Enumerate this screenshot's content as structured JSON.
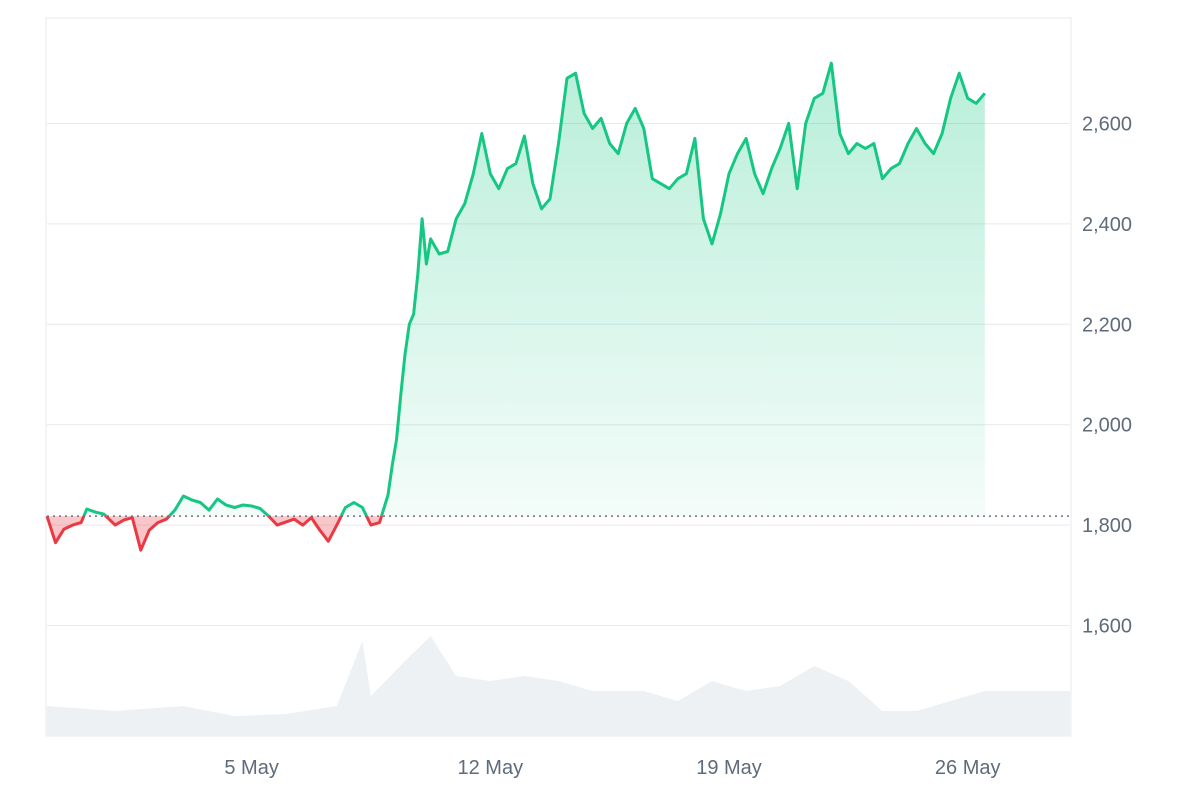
{
  "chart_data": {
    "type": "line",
    "title": "",
    "xlabel": "",
    "ylabel": "",
    "x_range": [
      "2025-04-29",
      "2025-05-29"
    ],
    "xticks": [
      {
        "date": "2025-05-05",
        "label": "5 May"
      },
      {
        "date": "2025-05-12",
        "label": "12 May"
      },
      {
        "date": "2025-05-19",
        "label": "19 May"
      },
      {
        "date": "2025-05-26",
        "label": "26 May"
      }
    ],
    "ylim": [
      1380,
      2810
    ],
    "yticks": [
      1600,
      1800,
      2000,
      2200,
      2400,
      2600
    ],
    "ytick_labels": [
      "1,600",
      "1,800",
      "2,000",
      "2,200",
      "2,400",
      "2,600"
    ],
    "grid": "horizontal",
    "y_axis_position": "right",
    "baseline": 1818,
    "colors": {
      "above_baseline": "#16c784",
      "below_baseline": "#ea3943",
      "volume": "#eef1f4",
      "grid": "#e6e9ee",
      "axis_text": "#5f6b7a"
    },
    "series": [
      {
        "points": [
          [
            "2025-04-29T00:00",
            1818
          ],
          [
            "2025-04-29T06:00",
            1765
          ],
          [
            "2025-04-29T12:00",
            1792
          ],
          [
            "2025-04-29T18:00",
            1800
          ],
          [
            "2025-04-30T00:00",
            1805
          ],
          [
            "2025-04-30T04:00",
            1832
          ],
          [
            "2025-04-30T10:00",
            1826
          ],
          [
            "2025-04-30T16:00",
            1822
          ],
          [
            "2025-05-01T00:00",
            1800
          ],
          [
            "2025-05-01T06:00",
            1810
          ],
          [
            "2025-05-01T12:00",
            1815
          ],
          [
            "2025-05-01T18:00",
            1750
          ],
          [
            "2025-05-02T00:00",
            1790
          ],
          [
            "2025-05-02T06:00",
            1805
          ],
          [
            "2025-05-02T12:00",
            1812
          ],
          [
            "2025-05-02T18:00",
            1830
          ],
          [
            "2025-05-03T00:00",
            1858
          ],
          [
            "2025-05-03T06:00",
            1850
          ],
          [
            "2025-05-03T12:00",
            1845
          ],
          [
            "2025-05-03T18:00",
            1830
          ],
          [
            "2025-05-04T00:00",
            1852
          ],
          [
            "2025-05-04T06:00",
            1840
          ],
          [
            "2025-05-04T12:00",
            1835
          ],
          [
            "2025-05-04T18:00",
            1840
          ],
          [
            "2025-05-05T00:00",
            1838
          ],
          [
            "2025-05-05T06:00",
            1833
          ],
          [
            "2025-05-05T12:00",
            1818
          ],
          [
            "2025-05-05T18:00",
            1800
          ],
          [
            "2025-05-06T00:00",
            1806
          ],
          [
            "2025-05-06T06:00",
            1812
          ],
          [
            "2025-05-06T12:00",
            1800
          ],
          [
            "2025-05-06T18:00",
            1815
          ],
          [
            "2025-05-07T00:00",
            1790
          ],
          [
            "2025-05-07T06:00",
            1768
          ],
          [
            "2025-05-07T12:00",
            1800
          ],
          [
            "2025-05-07T18:00",
            1835
          ],
          [
            "2025-05-08T00:00",
            1845
          ],
          [
            "2025-05-08T06:00",
            1835
          ],
          [
            "2025-05-08T12:00",
            1800
          ],
          [
            "2025-05-08T18:00",
            1805
          ],
          [
            "2025-05-09T00:00",
            1860
          ],
          [
            "2025-05-09T03:00",
            1920
          ],
          [
            "2025-05-09T06:00",
            1970
          ],
          [
            "2025-05-09T09:00",
            2060
          ],
          [
            "2025-05-09T12:00",
            2140
          ],
          [
            "2025-05-09T15:00",
            2200
          ],
          [
            "2025-05-09T18:00",
            2220
          ],
          [
            "2025-05-09T21:00",
            2300
          ],
          [
            "2025-05-10T00:00",
            2410
          ],
          [
            "2025-05-10T03:00",
            2320
          ],
          [
            "2025-05-10T06:00",
            2370
          ],
          [
            "2025-05-10T12:00",
            2340
          ],
          [
            "2025-05-10T18:00",
            2345
          ],
          [
            "2025-05-11T00:00",
            2410
          ],
          [
            "2025-05-11T06:00",
            2440
          ],
          [
            "2025-05-11T12:00",
            2500
          ],
          [
            "2025-05-11T18:00",
            2580
          ],
          [
            "2025-05-12T00:00",
            2500
          ],
          [
            "2025-05-12T06:00",
            2470
          ],
          [
            "2025-05-12T12:00",
            2510
          ],
          [
            "2025-05-12T18:00",
            2520
          ],
          [
            "2025-05-13T00:00",
            2575
          ],
          [
            "2025-05-13T06:00",
            2480
          ],
          [
            "2025-05-13T12:00",
            2430
          ],
          [
            "2025-05-13T18:00",
            2450
          ],
          [
            "2025-05-14T00:00",
            2560
          ],
          [
            "2025-05-14T06:00",
            2690
          ],
          [
            "2025-05-14T12:00",
            2700
          ],
          [
            "2025-05-14T18:00",
            2620
          ],
          [
            "2025-05-15T00:00",
            2590
          ],
          [
            "2025-05-15T06:00",
            2610
          ],
          [
            "2025-05-15T12:00",
            2560
          ],
          [
            "2025-05-15T18:00",
            2540
          ],
          [
            "2025-05-16T00:00",
            2600
          ],
          [
            "2025-05-16T06:00",
            2630
          ],
          [
            "2025-05-16T12:00",
            2590
          ],
          [
            "2025-05-16T18:00",
            2490
          ],
          [
            "2025-05-17T00:00",
            2480
          ],
          [
            "2025-05-17T06:00",
            2470
          ],
          [
            "2025-05-17T12:00",
            2490
          ],
          [
            "2025-05-17T18:00",
            2500
          ],
          [
            "2025-05-18T00:00",
            2570
          ],
          [
            "2025-05-18T06:00",
            2410
          ],
          [
            "2025-05-18T12:00",
            2360
          ],
          [
            "2025-05-18T18:00",
            2420
          ],
          [
            "2025-05-19T00:00",
            2500
          ],
          [
            "2025-05-19T06:00",
            2540
          ],
          [
            "2025-05-19T12:00",
            2570
          ],
          [
            "2025-05-19T18:00",
            2500
          ],
          [
            "2025-05-20T00:00",
            2460
          ],
          [
            "2025-05-20T06:00",
            2510
          ],
          [
            "2025-05-20T12:00",
            2550
          ],
          [
            "2025-05-20T18:00",
            2600
          ],
          [
            "2025-05-21T00:00",
            2470
          ],
          [
            "2025-05-21T06:00",
            2600
          ],
          [
            "2025-05-21T12:00",
            2650
          ],
          [
            "2025-05-21T18:00",
            2660
          ],
          [
            "2025-05-22T00:00",
            2720
          ],
          [
            "2025-05-22T06:00",
            2580
          ],
          [
            "2025-05-22T12:00",
            2540
          ],
          [
            "2025-05-22T18:00",
            2560
          ],
          [
            "2025-05-23T00:00",
            2550
          ],
          [
            "2025-05-23T06:00",
            2560
          ],
          [
            "2025-05-23T12:00",
            2490
          ],
          [
            "2025-05-23T18:00",
            2510
          ],
          [
            "2025-05-24T00:00",
            2520
          ],
          [
            "2025-05-24T06:00",
            2560
          ],
          [
            "2025-05-24T12:00",
            2590
          ],
          [
            "2025-05-24T18:00",
            2560
          ],
          [
            "2025-05-25T00:00",
            2540
          ],
          [
            "2025-05-25T06:00",
            2580
          ],
          [
            "2025-05-25T12:00",
            2650
          ],
          [
            "2025-05-25T18:00",
            2700
          ],
          [
            "2025-05-26T00:00",
            2650
          ],
          [
            "2025-05-26T06:00",
            2640
          ],
          [
            "2025-05-26T12:00",
            2660
          ]
        ]
      }
    ],
    "volume": {
      "relative": true,
      "levels": [
        [
          "2025-04-29T00:00",
          0.3
        ],
        [
          "2025-05-01T00:00",
          0.25
        ],
        [
          "2025-05-03T00:00",
          0.3
        ],
        [
          "2025-05-04T12:00",
          0.2
        ],
        [
          "2025-05-06T00:00",
          0.22
        ],
        [
          "2025-05-07T12:00",
          0.3
        ],
        [
          "2025-05-08T06:00",
          0.95
        ],
        [
          "2025-05-08T12:00",
          0.4
        ],
        [
          "2025-05-09T12:00",
          0.75
        ],
        [
          "2025-05-10T06:00",
          1.0
        ],
        [
          "2025-05-11T00:00",
          0.6
        ],
        [
          "2025-05-12T00:00",
          0.55
        ],
        [
          "2025-05-13T00:00",
          0.6
        ],
        [
          "2025-05-14T00:00",
          0.55
        ],
        [
          "2025-05-15T00:00",
          0.45
        ],
        [
          "2025-05-16T12:00",
          0.45
        ],
        [
          "2025-05-17T12:00",
          0.35
        ],
        [
          "2025-05-18T12:00",
          0.55
        ],
        [
          "2025-05-19T12:00",
          0.45
        ],
        [
          "2025-05-20T12:00",
          0.5
        ],
        [
          "2025-05-21T12:00",
          0.7
        ],
        [
          "2025-05-22T12:00",
          0.55
        ],
        [
          "2025-05-23T12:00",
          0.25
        ],
        [
          "2025-05-24T12:00",
          0.25
        ],
        [
          "2025-05-25T12:00",
          0.35
        ],
        [
          "2025-05-26T12:00",
          0.45
        ]
      ]
    }
  }
}
